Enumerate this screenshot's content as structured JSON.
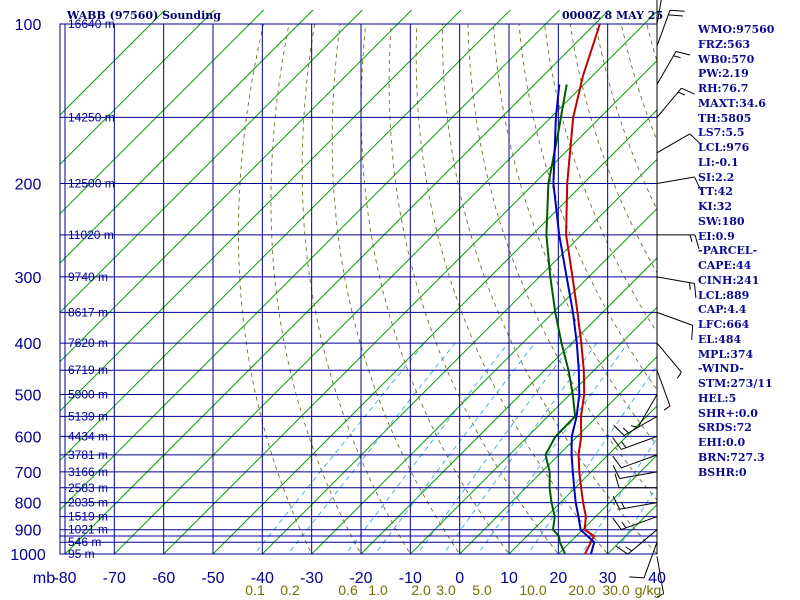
{
  "header": {
    "title_left": "WABB (97560) Sounding",
    "title_right": "0000Z  8 MAY 25"
  },
  "indices": [
    "WMO:97560",
    "FRZ:563",
    "WB0:570",
    "PW:2.19",
    "RH:76.7",
    "MAXT:34.6",
    "TH:5805",
    "LS7:5.5",
    "LCL:976",
    "LI:-0.1",
    "SI:2.2",
    "TT:42",
    "KI:32",
    "SW:180",
    "EI:0.9",
    "-PARCEL-",
    "CAPE:44",
    "CINH:241",
    "LCL:889",
    "CAP:4.4",
    "LFC:664",
    "EL:484",
    "MPL:374",
    "-WIND-",
    "STM:273/11",
    "HEL:5",
    "SHR+:0.0",
    "SRDS:72",
    "EHI:0.0",
    "BRN:727.3",
    "BSHR:0"
  ],
  "colors": {
    "temperature": "#c00000",
    "dewpoint": "#005a00",
    "parcel": "#0000c0",
    "grid": "#000090",
    "isotherms": "#00a000",
    "dry_adiabats": "#707030",
    "mixing_ratio": "#40a8e0",
    "mixing_ratio_labels": "#707000",
    "text": "#00006a"
  },
  "chart_data": {
    "type": "skew-t",
    "title": "WABB (97560) Sounding",
    "pressure_unit": "mb",
    "mixing_ratio_unit": "g/kg",
    "pressure_levels": [
      100,
      200,
      300,
      400,
      500,
      600,
      700,
      800,
      900,
      1000
    ],
    "pressure_labels": [
      "100",
      "200",
      "300",
      "400",
      "500",
      "600",
      "700",
      "800",
      "900",
      "1000"
    ],
    "pressure_lines": [
      100,
      150,
      200,
      250,
      300,
      350,
      400,
      450,
      500,
      550,
      600,
      650,
      700,
      750,
      800,
      850,
      900,
      925,
      950,
      1000
    ],
    "height_labels": [
      {
        "p": 100,
        "text": "16640 m"
      },
      {
        "p": 150,
        "text": "14250 m"
      },
      {
        "p": 200,
        "text": "12500 m"
      },
      {
        "p": 250,
        "text": "11020 m"
      },
      {
        "p": 300,
        "text": "9740 m"
      },
      {
        "p": 350,
        "text": "8617 m"
      },
      {
        "p": 400,
        "text": "7620 m"
      },
      {
        "p": 450,
        "text": "6719 m"
      },
      {
        "p": 500,
        "text": "5900 m"
      },
      {
        "p": 550,
        "text": "5139 m"
      },
      {
        "p": 600,
        "text": "4434 m"
      },
      {
        "p": 650,
        "text": "3781 m"
      },
      {
        "p": 700,
        "text": "3166 m"
      },
      {
        "p": 750,
        "text": "2583 m"
      },
      {
        "p": 800,
        "text": "2035 m"
      },
      {
        "p": 850,
        "text": "1519 m"
      },
      {
        "p": 900,
        "text": "1021 m"
      },
      {
        "p": 950,
        "text": "546 m"
      },
      {
        "p": 1000,
        "text": "95 m"
      }
    ],
    "x_ticks": [
      -80,
      -70,
      -60,
      -50,
      -40,
      -30,
      -20,
      -10,
      0,
      10,
      20,
      30,
      40
    ],
    "x_tick_labels": [
      "-80",
      "-70",
      "-60",
      "-50",
      "-40",
      "-30",
      "-20",
      "-10",
      "0",
      "10",
      "20",
      "30",
      "40"
    ],
    "xlim": [
      -80,
      40
    ],
    "ylim": [
      1000,
      100
    ],
    "mixing_ratio_lines": [
      0.1,
      0.2,
      0.6,
      1.0,
      2.0,
      3.0,
      5.0,
      10.0,
      20.0,
      30.0
    ],
    "mixing_ratio_labels": [
      "0.1",
      "0.2",
      "0.6",
      "1.0",
      "2.0",
      "3.0",
      "5.0",
      "10.0",
      "20.0",
      "30.0"
    ],
    "series": [
      {
        "key": "temperature",
        "points": [
          [
            1016,
            27.3
          ],
          [
            1000,
            25.4
          ],
          [
            950,
            24.2
          ],
          [
            925,
            23.6
          ],
          [
            900,
            20.4
          ],
          [
            850,
            18.0
          ],
          [
            800,
            14.6
          ],
          [
            750,
            11.2
          ],
          [
            700,
            7.6
          ],
          [
            650,
            4.0
          ],
          [
            600,
            0.8
          ],
          [
            550,
            -3.3
          ],
          [
            500,
            -7.1
          ],
          [
            450,
            -12.1
          ],
          [
            400,
            -18.1
          ],
          [
            350,
            -25.1
          ],
          [
            300,
            -33.3
          ],
          [
            250,
            -43.1
          ],
          [
            200,
            -53.3
          ],
          [
            150,
            -65.5
          ],
          [
            125,
            -72.0
          ],
          [
            100,
            -79.0
          ]
        ]
      },
      {
        "key": "dewpoint",
        "points": [
          [
            1016,
            22.6
          ],
          [
            1000,
            21.4
          ],
          [
            950,
            17.9
          ],
          [
            925,
            16.5
          ],
          [
            900,
            14.0
          ],
          [
            850,
            11.7
          ],
          [
            800,
            8.2
          ],
          [
            750,
            4.8
          ],
          [
            700,
            1.6
          ],
          [
            650,
            -2.7
          ],
          [
            600,
            -4.4
          ],
          [
            550,
            -4.5
          ],
          [
            500,
            -9.4
          ],
          [
            450,
            -15.2
          ],
          [
            400,
            -22.1
          ],
          [
            350,
            -29.6
          ],
          [
            300,
            -37.8
          ],
          [
            250,
            -47.1
          ],
          [
            200,
            -57.1
          ],
          [
            160,
            -65.5
          ],
          [
            130,
            -73.5
          ]
        ]
      },
      {
        "key": "parcel",
        "points": [
          [
            1016,
            28.5
          ],
          [
            1000,
            26.6
          ],
          [
            950,
            24.9
          ],
          [
            900,
            19.6
          ],
          [
            850,
            16.5
          ],
          [
            800,
            13.1
          ],
          [
            750,
            9.8
          ],
          [
            700,
            6.3
          ],
          [
            650,
            2.6
          ],
          [
            600,
            -1.1
          ],
          [
            550,
            -4.2
          ],
          [
            500,
            -8.1
          ],
          [
            450,
            -13.1
          ],
          [
            400,
            -19.0
          ],
          [
            350,
            -26.0
          ],
          [
            300,
            -34.5
          ],
          [
            250,
            -44.5
          ],
          [
            200,
            -56.1
          ],
          [
            150,
            -69.0
          ],
          [
            130,
            -75.0
          ]
        ]
      }
    ],
    "wind_barbs": [
      {
        "p": 1010,
        "dir": 170,
        "spd": 5
      },
      {
        "p": 950,
        "dir": 200,
        "spd": 10
      },
      {
        "p": 900,
        "dir": 230,
        "spd": 15
      },
      {
        "p": 850,
        "dir": 250,
        "spd": 15
      },
      {
        "p": 800,
        "dir": 260,
        "spd": 15
      },
      {
        "p": 750,
        "dir": 270,
        "spd": 10
      },
      {
        "p": 700,
        "dir": 260,
        "spd": 10
      },
      {
        "p": 650,
        "dir": 250,
        "spd": 10
      },
      {
        "p": 600,
        "dir": 250,
        "spd": 15
      },
      {
        "p": 550,
        "dir": 240,
        "spd": 15
      },
      {
        "p": 500,
        "dir": 210,
        "spd": 5
      },
      {
        "p": 450,
        "dir": 160,
        "spd": 5
      },
      {
        "p": 400,
        "dir": 140,
        "spd": 5
      },
      {
        "p": 350,
        "dir": 110,
        "spd": 10
      },
      {
        "p": 300,
        "dir": 100,
        "spd": 15
      },
      {
        "p": 250,
        "dir": 90,
        "spd": 15
      },
      {
        "p": 200,
        "dir": 80,
        "spd": 10
      },
      {
        "p": 175,
        "dir": 60,
        "spd": 10
      },
      {
        "p": 150,
        "dir": 40,
        "spd": 15
      },
      {
        "p": 130,
        "dir": 30,
        "spd": 15
      },
      {
        "p": 110,
        "dir": 20,
        "spd": 20
      },
      {
        "p": 100,
        "dir": 10,
        "spd": 10
      }
    ]
  }
}
